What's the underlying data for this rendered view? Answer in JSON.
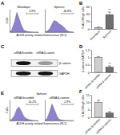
{
  "chart_data": [
    {
      "type": "area",
      "panel": "A",
      "title": "Monolayer",
      "x_label": "ALDH activity related fluorescence (FL1)",
      "y_label": "Cells",
      "x": [
        1,
        2,
        5,
        10,
        20,
        50,
        100,
        200,
        500,
        1000,
        3000,
        10000
      ],
      "values": [
        0,
        10,
        45,
        85,
        60,
        25,
        8,
        4,
        2,
        1,
        0,
        0
      ],
      "xlim": [
        1,
        10000
      ],
      "ylim": [
        0,
        100
      ],
      "log": "x",
      "tick_labels": false,
      "color": "#7a6cc8",
      "gate": [
        200,
        10000
      ],
      "annotations": [
        "3.9%"
      ]
    },
    {
      "type": "area",
      "title": "Spheres",
      "x": [
        1,
        2,
        5,
        10,
        20,
        50,
        100,
        200,
        500,
        1000,
        3000,
        10000
      ],
      "values": [
        0,
        4,
        15,
        35,
        50,
        45,
        35,
        30,
        20,
        8,
        2,
        0
      ],
      "xlim": [
        1,
        10000
      ],
      "ylim": [
        0,
        100
      ],
      "log": "x",
      "tick_labels": false,
      "color": "#7a6cc8",
      "gate": [
        200,
        10000
      ],
      "annotations": [
        "40.8%"
      ]
    },
    {
      "type": "bar",
      "panel": "B",
      "y_label": "% ALDHhigh cells",
      "categories": [
        "Monolayer",
        "Spheres"
      ],
      "values": [
        4,
        38
      ],
      "errors": [
        1,
        7
      ],
      "colors": [
        "#cfcfcf",
        "#6f6f6f"
      ],
      "ylim": [
        0,
        60
      ],
      "yticks": [
        0,
        20,
        40,
        60
      ],
      "annotations": [
        "**"
      ]
    },
    {
      "type": "blot",
      "panel": "C",
      "columns": [
        "siRNA Scramble",
        "siRNA β-catenin"
      ],
      "rows": [
        "β-catenin",
        "GAPDH"
      ],
      "values": [
        [
          1,
          0.35
        ],
        [
          1,
          1
        ]
      ]
    },
    {
      "type": "bar",
      "panel": "D",
      "y_label": "β-catenin/GAPDH",
      "categories": [
        "siRNA Scramble",
        "siRNA β-catenin"
      ],
      "values": [
        1,
        0.35
      ],
      "errors": [
        0.05,
        0.08
      ],
      "colors": [
        "#cfcfcf",
        "#6f6f6f"
      ],
      "ylim": [
        0,
        1.5
      ],
      "yticks": [
        0,
        0.5,
        1,
        1.5
      ],
      "annotations": [
        "**"
      ]
    },
    {
      "type": "area",
      "panel": "E",
      "subtitle": "Spheres",
      "title": "siRNA Scramble",
      "x_label": "ALDH activity related fluorescence (FL1)",
      "y_label": "Cells",
      "x": [
        1,
        2,
        5,
        10,
        20,
        50,
        100,
        200,
        500,
        1000,
        3000,
        10000
      ],
      "values": [
        0,
        6,
        25,
        55,
        65,
        40,
        18,
        10,
        5,
        2,
        0,
        0
      ],
      "xlim": [
        1,
        10000
      ],
      "ylim": [
        0,
        100
      ],
      "log": "x",
      "tick_labels": false,
      "color": "#7a6cc8",
      "gate": [
        200,
        10000
      ],
      "annotations": [
        "10.2%"
      ]
    },
    {
      "type": "area",
      "title": "siRNA β-catenin",
      "x": [
        1,
        2,
        5,
        10,
        20,
        50,
        100,
        200,
        500,
        1000,
        3000,
        10000
      ],
      "values": [
        0,
        10,
        45,
        80,
        55,
        20,
        6,
        3,
        1,
        0,
        0,
        0
      ],
      "xlim": [
        1,
        10000
      ],
      "ylim": [
        0,
        100
      ],
      "log": "x",
      "tick_labels": false,
      "color": "#7a6cc8",
      "gate": [
        200,
        10000
      ],
      "annotations": [
        "2.9%"
      ]
    },
    {
      "type": "bar",
      "panel": "F",
      "y_label": "% ALDHhigh cells",
      "categories": [
        "siRNA Scramble",
        "siRNA β-catenin"
      ],
      "values": [
        10,
        3
      ],
      "errors": [
        1.5,
        0.8
      ],
      "colors": [
        "#cfcfcf",
        "#6f6f6f"
      ],
      "ylim": [
        0,
        15
      ],
      "yticks": [
        0,
        5,
        10,
        15
      ],
      "annotations": [
        "*"
      ]
    }
  ]
}
